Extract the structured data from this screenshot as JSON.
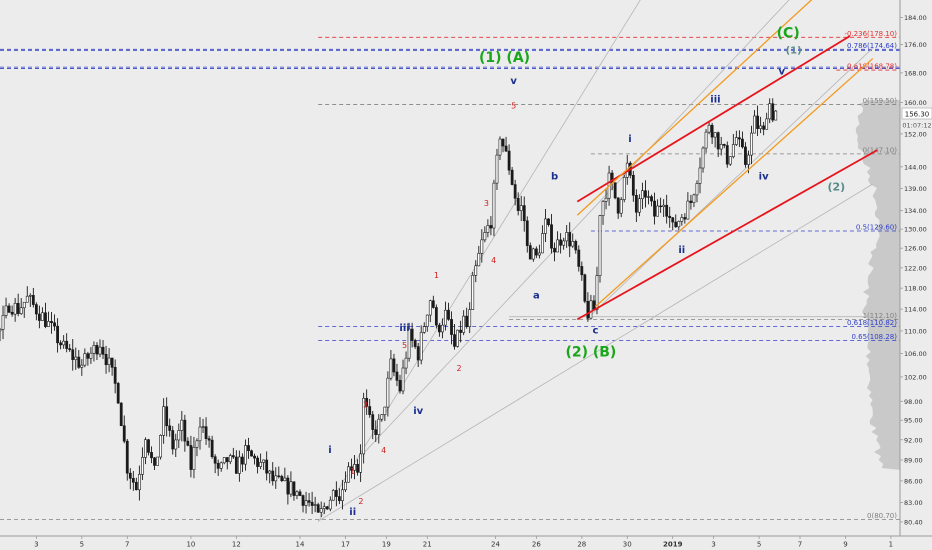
{
  "chart_data": {
    "type": "candlestick",
    "symbol_price": "156.30",
    "countdown": "01:07:12",
    "colors": {
      "background": "#ececec",
      "candle": "#1a1a1a",
      "channel_red": "#e8141c",
      "channel_orange": "#f39a1e",
      "wave_green": "#1aa61a",
      "wave_blue": "#1c2f8f",
      "wave_red": "#d12020",
      "fib_red": "#e53030",
      "fib_blue": "#3040c8",
      "fib_gray": "#808080",
      "profile": "#bdbdbd"
    },
    "y_axis": {
      "scale": "log",
      "ylim": [
        79.6,
        187.5
      ],
      "ticks": [
        "184.00",
        "176.00",
        "168.00",
        "160.00",
        "152.00",
        "144.00",
        "139.00",
        "134.00",
        "130.00",
        "126.00",
        "122.00",
        "118.00",
        "114.00",
        "110.00",
        "106.00",
        "102.00",
        "98.00",
        "95.00",
        "92.00",
        "89.00",
        "86.00",
        "83.00",
        "80.40"
      ]
    },
    "x_axis": {
      "xlim": [
        0,
        99
      ],
      "ticks": [
        {
          "pos": 4,
          "label": "3"
        },
        {
          "pos": 9,
          "label": "5"
        },
        {
          "pos": 14,
          "label": "7"
        },
        {
          "pos": 21,
          "label": "10"
        },
        {
          "pos": 26,
          "label": "12"
        },
        {
          "pos": 33,
          "label": "14"
        },
        {
          "pos": 38,
          "label": "17"
        },
        {
          "pos": 42.5,
          "label": "19"
        },
        {
          "pos": 47,
          "label": "21"
        },
        {
          "pos": 54.5,
          "label": "24"
        },
        {
          "pos": 59,
          "label": "26"
        },
        {
          "pos": 64,
          "label": "28"
        },
        {
          "pos": 69,
          "label": "30"
        },
        {
          "pos": 74,
          "label": "2019"
        },
        {
          "pos": 78.5,
          "label": "3"
        },
        {
          "pos": 83.5,
          "label": "5"
        },
        {
          "pos": 88,
          "label": "7"
        },
        {
          "pos": 93,
          "label": "9"
        },
        {
          "pos": 98,
          "label": "1"
        }
      ]
    },
    "anchors": [
      [
        0,
        110
      ],
      [
        1,
        115
      ],
      [
        2,
        114
      ],
      [
        3,
        116
      ],
      [
        5,
        112
      ],
      [
        7,
        107
      ],
      [
        9,
        104
      ],
      [
        11,
        108
      ],
      [
        12,
        104
      ],
      [
        13,
        99
      ],
      [
        14,
        88
      ],
      [
        15,
        85
      ],
      [
        16,
        93
      ],
      [
        17,
        87
      ],
      [
        18,
        96
      ],
      [
        19,
        91
      ],
      [
        20,
        94
      ],
      [
        21,
        88
      ],
      [
        22,
        95
      ],
      [
        23,
        91
      ],
      [
        24,
        87
      ],
      [
        25,
        89
      ],
      [
        26,
        88
      ],
      [
        27,
        90
      ],
      [
        29,
        88
      ],
      [
        30,
        86
      ],
      [
        32,
        85
      ],
      [
        33,
        84
      ],
      [
        34,
        83
      ],
      [
        35,
        81
      ],
      [
        36,
        83
      ],
      [
        37,
        85
      ],
      [
        37.5,
        84
      ],
      [
        38,
        87
      ],
      [
        39,
        89
      ],
      [
        39.5,
        87
      ],
      [
        40,
        98
      ],
      [
        41,
        93
      ],
      [
        42,
        95
      ],
      [
        43,
        104
      ],
      [
        44,
        100
      ],
      [
        45,
        109
      ],
      [
        46,
        106
      ],
      [
        47,
        114
      ],
      [
        47.5,
        117
      ],
      [
        48,
        110
      ],
      [
        49,
        113
      ],
      [
        50,
        107
      ],
      [
        51,
        112
      ],
      [
        51.5,
        110
      ],
      [
        52,
        119
      ],
      [
        53,
        127
      ],
      [
        54,
        132
      ],
      [
        55,
        152
      ],
      [
        56,
        144
      ],
      [
        57,
        134
      ],
      [
        57.5,
        135
      ],
      [
        58,
        126
      ],
      [
        59,
        124
      ],
      [
        60,
        131
      ],
      [
        61,
        126
      ],
      [
        62,
        129
      ],
      [
        63,
        127
      ],
      [
        64,
        119
      ],
      [
        64.5,
        113
      ],
      [
        65,
        114
      ],
      [
        65.5,
        114
      ],
      [
        66,
        134
      ],
      [
        67,
        141
      ],
      [
        68,
        135
      ],
      [
        69,
        144
      ],
      [
        70,
        134
      ],
      [
        71,
        138
      ],
      [
        72,
        133
      ],
      [
        73,
        137
      ],
      [
        74,
        130
      ],
      [
        75,
        133
      ],
      [
        76,
        136
      ],
      [
        77,
        145
      ],
      [
        78,
        155
      ],
      [
        79,
        150
      ],
      [
        80,
        146
      ],
      [
        81,
        151
      ],
      [
        82,
        145
      ],
      [
        83,
        155
      ],
      [
        84,
        152
      ],
      [
        84.5,
        161
      ],
      [
        85,
        157
      ],
      [
        85.5,
        158
      ]
    ],
    "channels": [
      {
        "name": "red-upper",
        "color": "red",
        "points": [
          [
            63.5,
            136
          ],
          [
            93.5,
            178.5
          ]
        ]
      },
      {
        "name": "red-lower",
        "color": "red",
        "points": [
          [
            63.5,
            112.1
          ],
          [
            96.5,
            148
          ]
        ]
      },
      {
        "name": "orange-upper",
        "color": "orange",
        "points": [
          [
            63.5,
            133
          ],
          [
            89.5,
            190
          ]
        ]
      },
      {
        "name": "orange-lower",
        "color": "orange",
        "points": [
          [
            65.5,
            114.5
          ],
          [
            96,
            172
          ]
        ]
      }
    ],
    "guide_lines": [
      {
        "points": [
          [
            35,
            80.4
          ],
          [
            71,
            192
          ]
        ]
      },
      {
        "points": [
          [
            40,
            90
          ],
          [
            87,
            190
          ]
        ]
      },
      {
        "points": [
          [
            64.5,
            112.1
          ],
          [
            96,
            175
          ]
        ]
      },
      {
        "points": [
          [
            35,
            80.5
          ],
          [
            96,
            140
          ]
        ]
      },
      {
        "points": [
          [
            56,
            112.6
          ],
          [
            96,
            112.6
          ]
        ]
      }
    ],
    "fib_levels": [
      {
        "value": 178.1,
        "label": "-0.236(178.10)",
        "color": "red",
        "style": "dashed",
        "x_from": 35
      },
      {
        "value": 174.64,
        "label": "0.786(174.64)",
        "color": "blue",
        "style": "dashed",
        "x_from": 0
      },
      {
        "value": 174.3,
        "label": "",
        "color": "blue",
        "style": "dashed",
        "x_from": 0
      },
      {
        "value": 169.6,
        "label": "",
        "color": "blue",
        "style": "dashed",
        "x_from": 0
      },
      {
        "value": 169.2,
        "label": "",
        "color": "blue",
        "style": "dashed",
        "x_from": 0
      },
      {
        "value": 168.78,
        "label": "0.618(168.78)",
        "color": "red",
        "style": "dashed",
        "x_from": 92
      },
      {
        "value": 159.5,
        "label": "0(159.50)",
        "color": "gray",
        "style": "dashed",
        "x_from": 35
      },
      {
        "value": 147.1,
        "label": "0(147.10)",
        "color": "gray",
        "style": "dashed",
        "x_from": 65
      },
      {
        "value": 129.6,
        "label": "0.5(129.60)",
        "color": "blue",
        "style": "dashed",
        "x_from": 65
      },
      {
        "value": 112.1,
        "label": "1(112.10)",
        "color": "gray",
        "style": "dashed",
        "x_from": 56
      },
      {
        "value": 110.82,
        "label": "0.618(110.82)",
        "color": "blue",
        "style": "dashed",
        "x_from": 35
      },
      {
        "value": 108.28,
        "label": "0.65(108.28)",
        "color": "blue",
        "style": "dashed",
        "x_from": 35
      },
      {
        "value": 80.7,
        "label": "0(80.70)",
        "color": "gray",
        "style": "dashed",
        "x_from": 0
      }
    ],
    "wave_labels": [
      {
        "text": "(1) (A)",
        "x": 55.5,
        "y": 171,
        "color": "green",
        "size": 14
      },
      {
        "text": "v",
        "x": 56.5,
        "y": 165,
        "color": "blue",
        "size": 10
      },
      {
        "text": "5",
        "x": 56.5,
        "y": 158.5,
        "color": "red",
        "size": 8
      },
      {
        "text": "b",
        "x": 61,
        "y": 141,
        "color": "blue",
        "size": 10
      },
      {
        "text": "3",
        "x": 53.5,
        "y": 135,
        "color": "red",
        "size": 8
      },
      {
        "text": "4",
        "x": 54.3,
        "y": 123,
        "color": "red",
        "size": 8
      },
      {
        "text": "1",
        "x": 48,
        "y": 120,
        "color": "red",
        "size": 8
      },
      {
        "text": "a",
        "x": 59,
        "y": 116,
        "color": "blue",
        "size": 10
      },
      {
        "text": "iii",
        "x": 44.5,
        "y": 110,
        "color": "blue",
        "size": 10
      },
      {
        "text": "5",
        "x": 44.5,
        "y": 107,
        "color": "red",
        "size": 8
      },
      {
        "text": "2",
        "x": 50.5,
        "y": 103,
        "color": "red",
        "size": 8
      },
      {
        "text": "3",
        "x": 40.2,
        "y": 97,
        "color": "red",
        "size": 8
      },
      {
        "text": "iv",
        "x": 46,
        "y": 96,
        "color": "blue",
        "size": 10
      },
      {
        "text": "4",
        "x": 42.2,
        "y": 90,
        "color": "red",
        "size": 8
      },
      {
        "text": "i",
        "x": 36.3,
        "y": 90,
        "color": "blue",
        "size": 10
      },
      {
        "text": "1",
        "x": 38.8,
        "y": 87,
        "color": "red",
        "size": 8
      },
      {
        "text": "2",
        "x": 39.7,
        "y": 82.8,
        "color": "red",
        "size": 8
      },
      {
        "text": "ii",
        "x": 38.8,
        "y": 81.3,
        "color": "blue",
        "size": 10
      },
      {
        "text": "(2)  (B)",
        "x": 65,
        "y": 105.5,
        "color": "green",
        "size": 14
      },
      {
        "text": "c",
        "x": 65.5,
        "y": 109.5,
        "color": "blue",
        "size": 10
      },
      {
        "text": "i",
        "x": 69.3,
        "y": 150,
        "color": "blue",
        "size": 10
      },
      {
        "text": "ii",
        "x": 75,
        "y": 125,
        "color": "blue",
        "size": 10
      },
      {
        "text": "iii",
        "x": 78.7,
        "y": 160,
        "color": "blue",
        "size": 10
      },
      {
        "text": "iv",
        "x": 84,
        "y": 141,
        "color": "blue",
        "size": 10
      },
      {
        "text": "v",
        "x": 86,
        "y": 167.5,
        "color": "blue",
        "size": 10
      },
      {
        "text": "(C)",
        "x": 86.7,
        "y": 178,
        "color": "green",
        "size": 14
      },
      {
        "text": "(1)",
        "x": 87.3,
        "y": 173.5,
        "color": "gray",
        "size": 10
      },
      {
        "text": "(2)",
        "x": 92,
        "y": 138.5,
        "color": "gray",
        "size": 11
      }
    ]
  }
}
